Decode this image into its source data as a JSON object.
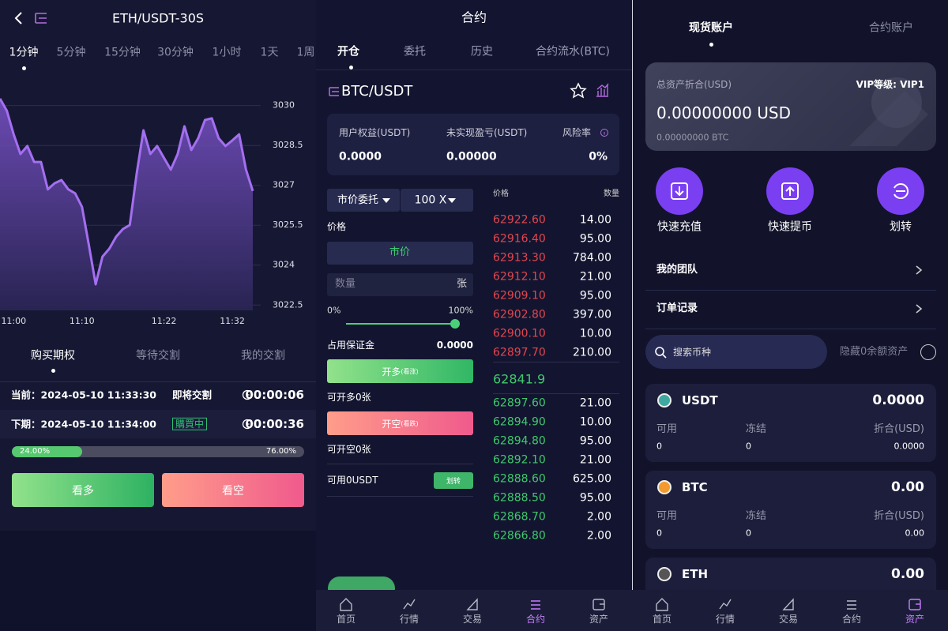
{
  "left": {
    "title": "ETH/USDT-30S",
    "timeframes": [
      "1分钟",
      "5分钟",
      "15分钟",
      "30分钟",
      "1小时",
      "1天",
      "1周"
    ],
    "tabs": [
      "购买期权",
      "等待交割",
      "我的交割"
    ],
    "current": {
      "time": "当前：2024-05-10 11:33:30",
      "status": "即将交割",
      "countdown": "00:00:06"
    },
    "next": {
      "time": "下期：2024-05-10 11:34:00",
      "status": "購買中",
      "countdown": "00:00:36"
    },
    "ratio": [
      {
        "value": 24,
        "label": "24.00%"
      },
      {
        "value": 76,
        "label": "76.00%"
      }
    ],
    "buttons": [
      "看多",
      "看空"
    ]
  },
  "chart_data": {
    "type": "line",
    "categories": [
      null,
      null,
      "11:00",
      null,
      null,
      null,
      null,
      null,
      null,
      null,
      null,
      null,
      "11:10",
      null,
      null,
      null,
      null,
      null,
      null,
      null,
      null,
      null,
      null,
      null,
      "11:22",
      null,
      null,
      null,
      null,
      null,
      null,
      null,
      null,
      null,
      "11:32",
      null,
      null,
      null
    ],
    "values": [
      3030.26,
      3029.81,
      3028.92,
      3028.18,
      3028.48,
      3027.88,
      3027.88,
      3026.85,
      3027.08,
      3027.2,
      3026.85,
      3026.7,
      3026.19,
      3024.77,
      3023.28,
      3024.32,
      3024.62,
      3025.07,
      3025.36,
      3025.51,
      3027.44,
      3029.07,
      3028.18,
      3028.48,
      3028.03,
      3027.59,
      3028.18,
      3029.22,
      3028.33,
      3028.77,
      3029.46,
      3029.52,
      3028.77,
      3028.48,
      3028.69,
      3028.92,
      3027.59,
      3026.79
    ],
    "color": "#a46ff0",
    "ylim": [
      3022.3,
      3031
    ],
    "yticks": [
      3022.5,
      3024,
      3025.5,
      3027,
      3028.5,
      3030
    ],
    "grid": true
  },
  "middle": {
    "title": "合约",
    "tabs": [
      "开仓",
      "委托",
      "历史",
      "合约流水(BTC)"
    ],
    "pair": "BTC/USDT",
    "stats": [
      {
        "label": "用户权益(USDT)",
        "value": "0.0000"
      },
      {
        "label": "未实现盈亏(USDT)",
        "value": "0.00000"
      },
      {
        "label": "风险率",
        "value": "0%"
      }
    ],
    "order_type": "市价委托",
    "leverage": "100 X",
    "price_label": "价格",
    "price_mode": "市价",
    "qty_placeholder": "数量",
    "qty_unit": "张",
    "slider": [
      "0%",
      "100%"
    ],
    "margin_label": "占用保证金",
    "margin": "0.0000",
    "long": {
      "button": "开多",
      "hint": "(看涨)",
      "info": "可开多0张"
    },
    "short": {
      "button": "开空",
      "hint": "(看跌)",
      "info": "可开空0张"
    },
    "available": "可用0USDT",
    "transfer": "划转",
    "book": {
      "headers": [
        "价格",
        "数量"
      ],
      "asks": [
        [
          "62922.60",
          "14.00"
        ],
        [
          "62916.40",
          "95.00"
        ],
        [
          "62913.30",
          "784.00"
        ],
        [
          "62912.10",
          "21.00"
        ],
        [
          "62909.10",
          "95.00"
        ],
        [
          "62902.80",
          "397.00"
        ],
        [
          "62900.10",
          "10.00"
        ],
        [
          "62897.70",
          "210.00"
        ]
      ],
      "last": "62841.9",
      "bids": [
        [
          "62897.60",
          "21.00"
        ],
        [
          "62894.90",
          "10.00"
        ],
        [
          "62894.80",
          "95.00"
        ],
        [
          "62892.10",
          "21.00"
        ],
        [
          "62888.60",
          "625.00"
        ],
        [
          "62888.50",
          "95.00"
        ],
        [
          "62868.70",
          "2.00"
        ],
        [
          "62866.80",
          "2.00"
        ]
      ]
    },
    "nav": [
      "首页",
      "行情",
      "交易",
      "合约",
      "资产"
    ]
  },
  "right": {
    "tabs": [
      "现货账户",
      "合约账户"
    ],
    "card": {
      "label": "总资产折合(USD)",
      "vip": "VIP等级: VIP1",
      "total": "0.00000000 USD",
      "btc": "0.00000000 BTC"
    },
    "actions": [
      "快速充值",
      "快速提币",
      "划转"
    ],
    "menu": [
      "我的团队",
      "订单记录"
    ],
    "search": "搜索币种",
    "hide_zero": "隐藏0余额资产",
    "assets": [
      {
        "name": "USDT",
        "total": "0.0000",
        "fields": [
          {
            "label": "可用",
            "value": "0"
          },
          {
            "label": "冻结",
            "value": "0"
          },
          {
            "label": "折合(USD)",
            "value": "0.0000"
          }
        ]
      },
      {
        "name": "BTC",
        "total": "0.00",
        "fields": [
          {
            "label": "可用",
            "value": "0"
          },
          {
            "label": "冻结",
            "value": "0"
          },
          {
            "label": "折合(USD)",
            "value": "0.00"
          }
        ]
      },
      {
        "name": "ETH",
        "total": "0.00"
      }
    ],
    "nav": [
      "首页",
      "行情",
      "交易",
      "合约",
      "资产"
    ]
  }
}
